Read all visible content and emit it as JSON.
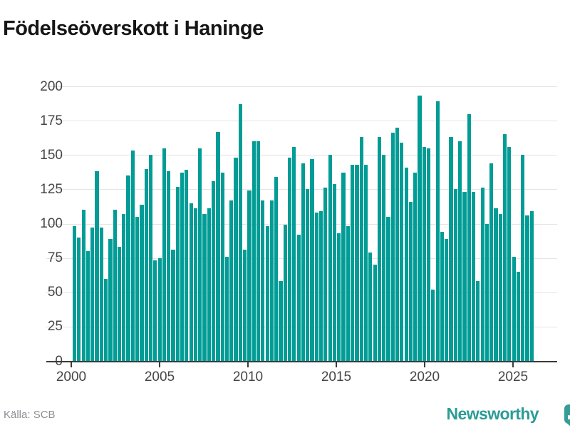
{
  "title": "Födelseöverskott i Haninge",
  "footer": {
    "source_label": "Källa: SCB",
    "brand_name": "Newsworthy"
  },
  "colors": {
    "bar": "#009c95",
    "axis": "#3b3b3b",
    "gridline": "#e4e4e4",
    "tick_label": "#464646",
    "title_text": "#161616",
    "source_text": "#8d8d94",
    "brand_teal": "#2b9c95"
  },
  "chart_data": {
    "type": "bar",
    "title": "Födelseöverskott i Haninge",
    "frequency": "quarterly",
    "x_start": "2000 Q1",
    "x_end": "2025 Q3",
    "x_tick_years": [
      2000,
      2005,
      2010,
      2015,
      2020,
      2025
    ],
    "y_ticks": [
      0,
      25,
      50,
      75,
      100,
      125,
      150,
      175,
      200
    ],
    "ylim": [
      0,
      200
    ],
    "grid": "horizontal",
    "legend": "none",
    "values": [
      98,
      90,
      110,
      80,
      97,
      138,
      97,
      60,
      89,
      110,
      83,
      107,
      135,
      153,
      105,
      114,
      140,
      150,
      73,
      75,
      155,
      138,
      81,
      127,
      137,
      139,
      115,
      111,
      155,
      107,
      111,
      131,
      167,
      137,
      76,
      117,
      148,
      187,
      81,
      124,
      160,
      160,
      117,
      98,
      117,
      134,
      58,
      99,
      148,
      156,
      92,
      144,
      125,
      147,
      108,
      109,
      126,
      150,
      129,
      93,
      137,
      98,
      143,
      143,
      163,
      143,
      79,
      70,
      163,
      150,
      105,
      166,
      170,
      159,
      141,
      116,
      137,
      193,
      156,
      155,
      52,
      189,
      94,
      89,
      163,
      125,
      160,
      123,
      180,
      123,
      58,
      126,
      100,
      144,
      111,
      107,
      165,
      156,
      76,
      65,
      150,
      106,
      109
    ]
  }
}
